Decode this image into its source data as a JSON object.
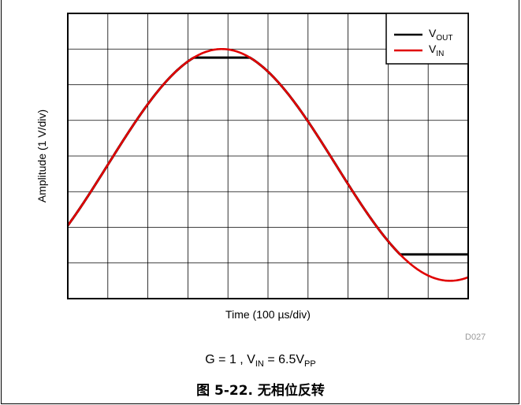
{
  "chart_data": {
    "type": "line",
    "title": "",
    "xlabel": "Time (100 µs/div)",
    "ylabel": "Amplitude (1 V/div)",
    "xlim": [
      0,
      10
    ],
    "ylim": [
      -4,
      4
    ],
    "grid": true,
    "legend_position": "top-right",
    "series": [
      {
        "name_main": "V",
        "name_sub": "OUT",
        "color": "#000000",
        "description": "sine clipped at top and bottom",
        "amplitude": 3.25,
        "offset": -0.25,
        "clip_high": 2.76,
        "clip_low": -2.76,
        "period_divs": 11.4,
        "phase_start_rad": -0.55
      },
      {
        "name_main": "V",
        "name_sub": "IN",
        "color": "#e00000",
        "amplitude": 3.25,
        "offset": -0.25,
        "period_divs": 11.4,
        "phase_start_rad": -0.55
      }
    ]
  },
  "figure_id": "D027",
  "condition": {
    "gain": "G = 1 ,  V",
    "vin_sub": "IN",
    "vin_val": " = 6.5V",
    "pp_sub": "PP"
  },
  "caption": "图 5-22. 无相位反转"
}
